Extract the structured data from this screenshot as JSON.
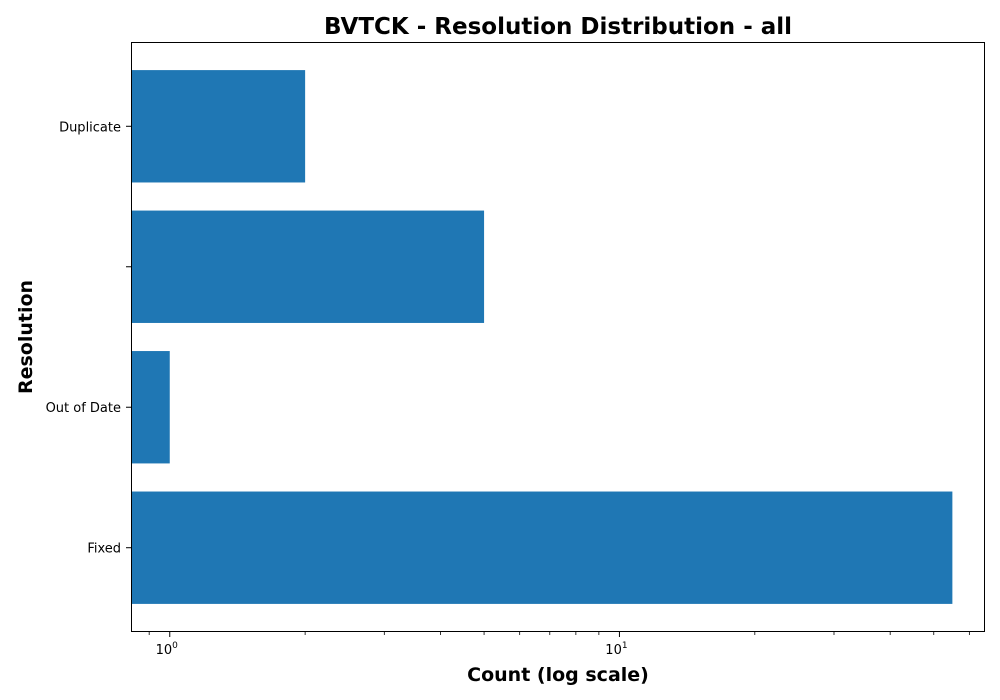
{
  "chart_data": {
    "type": "bar",
    "orientation": "horizontal",
    "title": "BVTCK - Resolution Distribution - all",
    "xlabel": "Count (log scale)",
    "ylabel": "Resolution",
    "x_scale": "log",
    "xlim": [
      0.82,
      65
    ],
    "x_ticks": [
      {
        "value": 1,
        "base": "10",
        "exponent": "0"
      },
      {
        "value": 10,
        "base": "10",
        "exponent": "1"
      }
    ],
    "categories": [
      "Fixed",
      "Out of Date",
      "",
      "Duplicate"
    ],
    "values": [
      55,
      1,
      5,
      2
    ],
    "bar_color": "#1f77b4",
    "grid": false,
    "legend": "none"
  }
}
